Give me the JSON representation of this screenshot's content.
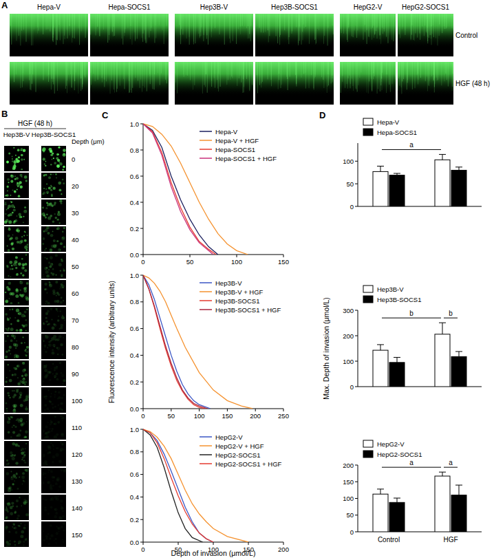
{
  "panel_labels": [
    "A",
    "B",
    "C",
    "D"
  ],
  "panel_a": {
    "columns": [
      "Hepa-V",
      "Hepa-SOCS1",
      "Hep3B-V",
      "Hep3B-SOCS1",
      "HepG2-V",
      "HepG2-SOCS1"
    ],
    "rows": [
      "Control",
      "HGF (48 h)"
    ]
  },
  "panel_b": {
    "header": "HGF (48 h)",
    "columns": [
      "Hep3B-V",
      "Hep3B-SOCS1"
    ],
    "depth_label": "Depth (μm)",
    "depths": [
      0,
      20,
      30,
      40,
      50,
      60,
      70,
      80,
      90,
      100,
      110,
      120,
      130,
      140,
      150
    ]
  },
  "chart_data": [
    {
      "type": "line",
      "xlim": [
        0,
        150
      ],
      "xticks": [
        0,
        50,
        100,
        150
      ],
      "ylim": [
        0,
        1
      ],
      "yticks": [
        {
          "value": 0,
          "label": "0.0"
        },
        {
          "value": 0.2,
          "label": "0.2"
        },
        {
          "value": 0.4,
          "label": "0.4"
        },
        {
          "value": 0.6,
          "label": "0.6"
        },
        {
          "value": 0.8,
          "label": "0.8"
        },
        {
          "value": 1,
          "label": "1.0"
        }
      ],
      "legend": "top-right",
      "series": [
        {
          "name": "Hepa-V",
          "color": "#1b1f5e",
          "x": [
            0,
            10,
            20,
            30,
            40,
            50,
            60,
            70,
            80
          ],
          "values": [
            1,
            0.95,
            0.82,
            0.6,
            0.42,
            0.27,
            0.15,
            0.06,
            0
          ]
        },
        {
          "name": "Hepa-V + HGF",
          "color": "#f5922f",
          "x": [
            0,
            10,
            20,
            30,
            40,
            50,
            60,
            70,
            80,
            90,
            100,
            112
          ],
          "values": [
            1,
            0.98,
            0.92,
            0.83,
            0.7,
            0.55,
            0.4,
            0.27,
            0.16,
            0.08,
            0.03,
            0
          ]
        },
        {
          "name": "Hepa-SOCS1",
          "color": "#e53a2f",
          "x": [
            0,
            10,
            20,
            30,
            40,
            50,
            60,
            70,
            78
          ],
          "values": [
            1,
            0.94,
            0.78,
            0.55,
            0.36,
            0.21,
            0.1,
            0.04,
            0
          ]
        },
        {
          "name": "Hepa-SOCS1 + HGF",
          "color": "#c9307a",
          "x": [
            0,
            10,
            20,
            30,
            40,
            50,
            60,
            70,
            75
          ],
          "values": [
            1,
            0.93,
            0.76,
            0.52,
            0.33,
            0.19,
            0.09,
            0.03,
            0
          ]
        }
      ]
    },
    {
      "type": "line",
      "y_label": "Fluorescence intensity (arbitrary units)",
      "xlim": [
        0,
        250
      ],
      "xticks": [
        0,
        50,
        100,
        150,
        200,
        250
      ],
      "ylim": [
        0,
        1
      ],
      "yticks": [
        {
          "value": 0,
          "label": "0.0"
        },
        {
          "value": 0.2,
          "label": "0.2"
        },
        {
          "value": 0.4,
          "label": "0.4"
        },
        {
          "value": 0.6,
          "label": "0.6"
        },
        {
          "value": 0.8,
          "label": "0.8"
        },
        {
          "value": 1,
          "label": "1.0"
        }
      ],
      "legend": "top-right",
      "series": [
        {
          "name": "Hep3B-V",
          "color": "#3b56c4",
          "x": [
            0,
            10,
            20,
            30,
            40,
            50,
            60,
            70,
            80,
            90,
            100,
            120
          ],
          "values": [
            1,
            0.93,
            0.82,
            0.68,
            0.54,
            0.4,
            0.28,
            0.18,
            0.11,
            0.06,
            0.03,
            0
          ]
        },
        {
          "name": "Hep3B-V + HGF",
          "color": "#f5922f",
          "x": [
            0,
            10,
            20,
            30,
            40,
            50,
            60,
            75,
            100,
            125,
            150,
            175,
            195
          ],
          "values": [
            1,
            0.98,
            0.94,
            0.88,
            0.8,
            0.7,
            0.6,
            0.46,
            0.27,
            0.14,
            0.06,
            0.02,
            0
          ]
        },
        {
          "name": "Hep3B-SOCS1",
          "color": "#e53a2f",
          "x": [
            0,
            10,
            20,
            30,
            40,
            50,
            60,
            70,
            80,
            90,
            100,
            110
          ],
          "values": [
            1,
            0.9,
            0.76,
            0.6,
            0.45,
            0.32,
            0.21,
            0.13,
            0.07,
            0.03,
            0.01,
            0
          ]
        },
        {
          "name": "Hep3B-SOCS1 + HGF",
          "color": "#a8243c",
          "x": [
            0,
            10,
            20,
            30,
            40,
            50,
            60,
            70,
            80,
            90,
            100,
            115
          ],
          "values": [
            1,
            0.9,
            0.77,
            0.62,
            0.47,
            0.34,
            0.23,
            0.14,
            0.08,
            0.04,
            0.02,
            0
          ]
        }
      ]
    },
    {
      "type": "line",
      "x_label": "Depth of invasion (μmol/L)",
      "xlim": [
        0,
        200
      ],
      "xticks": [
        0,
        50,
        100,
        150,
        200
      ],
      "ylim": [
        0,
        1
      ],
      "yticks": [
        {
          "value": 0,
          "label": "0.0"
        },
        {
          "value": 0.2,
          "label": "0.2"
        },
        {
          "value": 0.4,
          "label": "0.4"
        },
        {
          "value": 0.6,
          "label": "0.6"
        },
        {
          "value": 0.8,
          "label": "0.8"
        },
        {
          "value": 1,
          "label": "1.0"
        }
      ],
      "legend": "top-right",
      "series": [
        {
          "name": "HepG2-V",
          "color": "#3b56c4",
          "x": [
            0,
            10,
            20,
            30,
            40,
            50,
            60,
            70,
            80,
            90,
            100
          ],
          "values": [
            1,
            0.97,
            0.9,
            0.78,
            0.63,
            0.47,
            0.31,
            0.18,
            0.08,
            0.03,
            0
          ]
        },
        {
          "name": "HepG2-V + HGF",
          "color": "#f5922f",
          "x": [
            0,
            10,
            20,
            30,
            40,
            50,
            60,
            70,
            80,
            90,
            100,
            120,
            150
          ],
          "values": [
            1,
            0.98,
            0.93,
            0.85,
            0.74,
            0.6,
            0.46,
            0.34,
            0.25,
            0.18,
            0.12,
            0.05,
            0
          ]
        },
        {
          "name": "HepG2-SOCS1",
          "color": "#222222",
          "x": [
            0,
            10,
            20,
            30,
            40,
            50,
            60,
            70,
            85
          ],
          "values": [
            1,
            0.95,
            0.84,
            0.66,
            0.45,
            0.26,
            0.12,
            0.04,
            0
          ]
        },
        {
          "name": "HepG2-SOCS1 + HGF",
          "color": "#e53a2f",
          "x": [
            0,
            10,
            20,
            30,
            40,
            50,
            60,
            70,
            80,
            90,
            100
          ],
          "values": [
            1,
            0.97,
            0.88,
            0.74,
            0.57,
            0.41,
            0.27,
            0.16,
            0.08,
            0.03,
            0
          ]
        }
      ]
    },
    {
      "type": "bar",
      "categories": [
        null,
        null
      ],
      "ylim": [
        0,
        140
      ],
      "yticks": [
        0,
        50,
        100
      ],
      "legend": "top-left",
      "series": [
        {
          "name": "Hepa-V",
          "color": "#ffffff",
          "values": [
            77,
            103
          ],
          "errors": [
            12,
            12
          ]
        },
        {
          "name": "Hepa-SOCS1",
          "color": "#000000",
          "values": [
            69,
            80
          ],
          "errors": [
            4,
            7
          ]
        }
      ],
      "annotations": [
        {
          "text": "a",
          "from": {
            "series": "Hepa-V",
            "category": 0
          },
          "to": {
            "series": "Hepa-V",
            "category": 1
          }
        }
      ]
    },
    {
      "type": "bar",
      "y_label": "Max. Depth of invasion (μmol/L)",
      "categories": [
        null,
        null
      ],
      "ylim": [
        0,
        300
      ],
      "yticks": [
        0,
        100,
        200,
        300
      ],
      "legend": "top-left",
      "series": [
        {
          "name": "Hep3B-V",
          "color": "#ffffff",
          "values": [
            143,
            206
          ],
          "errors": [
            22,
            45
          ]
        },
        {
          "name": "Hep3B-SOCS1",
          "color": "#000000",
          "values": [
            95,
            118
          ],
          "errors": [
            20,
            20
          ]
        }
      ],
      "annotations": [
        {
          "text": "b",
          "from": {
            "series": "Hep3B-V",
            "category": 0
          },
          "to": {
            "series": "Hep3B-V",
            "category": 1
          }
        },
        {
          "text": "b",
          "from": {
            "series": "Hep3B-V",
            "category": 1
          },
          "to": {
            "series": "Hep3B-SOCS1",
            "category": 1
          }
        }
      ]
    },
    {
      "type": "bar",
      "categories": [
        "Control",
        "HGF"
      ],
      "ylim": [
        0,
        200
      ],
      "yticks": [
        0,
        50,
        100,
        150,
        200
      ],
      "legend": "top-left",
      "series": [
        {
          "name": "HepG2-V",
          "color": "#ffffff",
          "values": [
            113,
            167
          ],
          "errors": [
            15,
            12
          ]
        },
        {
          "name": "HepG2-SOCS1",
          "color": "#000000",
          "values": [
            88,
            110
          ],
          "errors": [
            13,
            30
          ]
        }
      ],
      "annotations": [
        {
          "text": "a",
          "from": {
            "series": "HepG2-V",
            "category": 0
          },
          "to": {
            "series": "HepG2-V",
            "category": 1
          }
        },
        {
          "text": "a",
          "from": {
            "series": "HepG2-V",
            "category": 1
          },
          "to": {
            "series": "HepG2-SOCS1",
            "category": 1
          }
        }
      ]
    }
  ]
}
